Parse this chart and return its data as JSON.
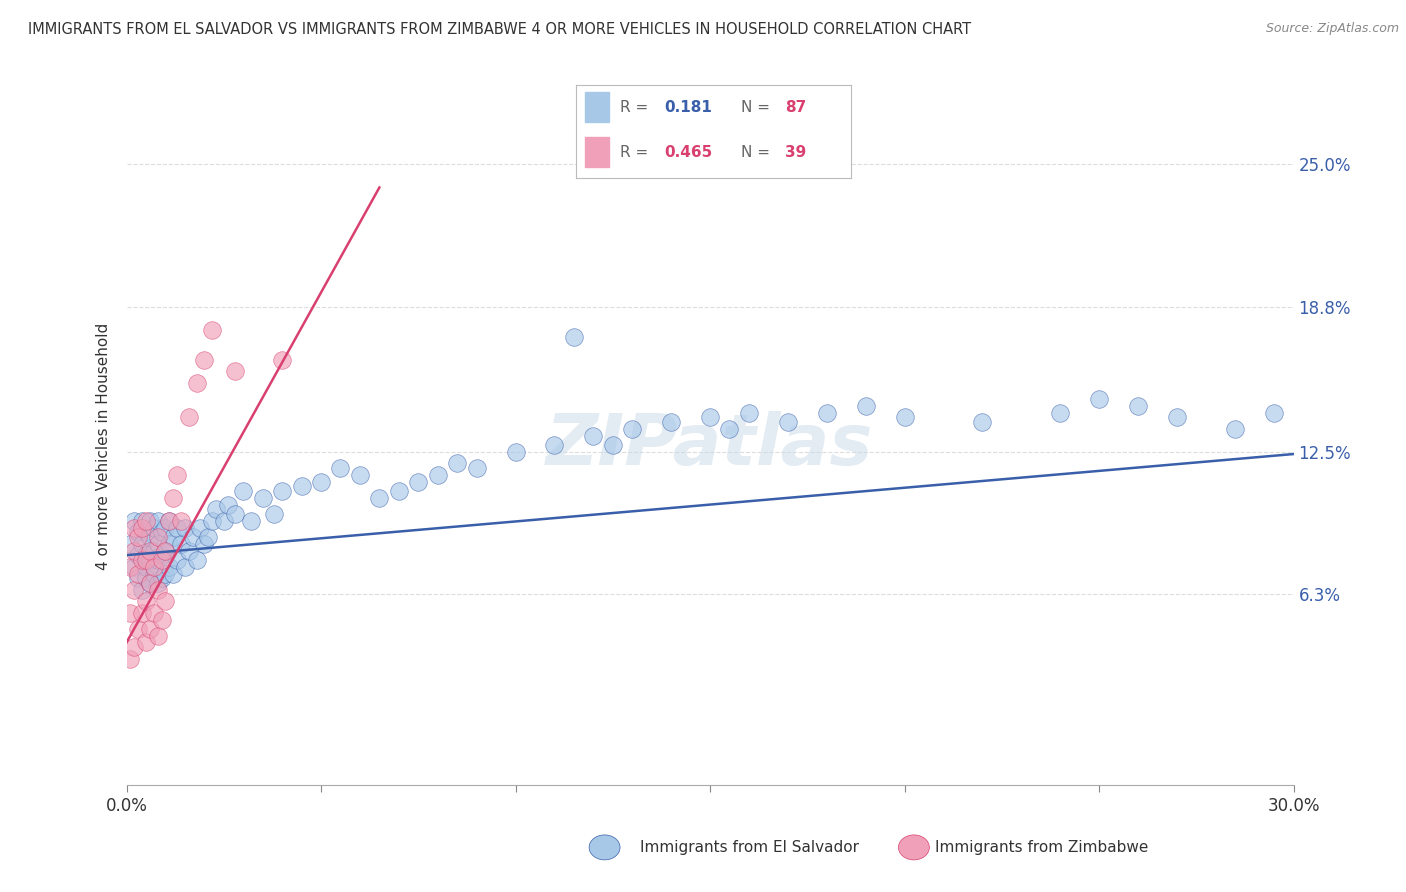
{
  "title": "IMMIGRANTS FROM EL SALVADOR VS IMMIGRANTS FROM ZIMBABWE 4 OR MORE VEHICLES IN HOUSEHOLD CORRELATION CHART",
  "source": "Source: ZipAtlas.com",
  "ylabel": "4 or more Vehicles in Household",
  "y_ticks": [
    0.063,
    0.125,
    0.188,
    0.25
  ],
  "y_tick_labels": [
    "6.3%",
    "12.5%",
    "18.8%",
    "25.0%"
  ],
  "x_range": [
    0.0,
    0.3
  ],
  "y_range": [
    -0.02,
    0.275
  ],
  "color_salvador": "#a8c8e8",
  "color_zimbabwe": "#f0a0b8",
  "color_salvador_line": "#3a5faa",
  "color_zimbabwe_line": "#d94070",
  "background_color": "#ffffff",
  "grid_color": "#dddddd",
  "watermark": "ZIPatlas",
  "legend_items": [
    {
      "color_box": "#a8c8e8",
      "text_R": "R = ",
      "val_R": "0.181",
      "text_N": "N = ",
      "val_N": "87"
    },
    {
      "color_box": "#f0a0b8",
      "text_R": "R = ",
      "val_R": "0.465",
      "text_N": "N = ",
      "val_N": "39"
    }
  ],
  "legend_val_color1": "#3a5faa",
  "legend_val_color2": "#d94070",
  "legend_N_color": "#d94070",
  "salvador_label": "Immigrants from El Salvador",
  "zimbabwe_label": "Immigrants from Zimbabwe",
  "scatter_salvador_x": [
    0.001,
    0.002,
    0.002,
    0.003,
    0.003,
    0.003,
    0.004,
    0.004,
    0.004,
    0.005,
    0.005,
    0.005,
    0.005,
    0.006,
    0.006,
    0.006,
    0.006,
    0.007,
    0.007,
    0.007,
    0.008,
    0.008,
    0.008,
    0.008,
    0.009,
    0.009,
    0.009,
    0.01,
    0.01,
    0.01,
    0.011,
    0.011,
    0.011,
    0.012,
    0.012,
    0.013,
    0.013,
    0.014,
    0.015,
    0.015,
    0.016,
    0.017,
    0.018,
    0.019,
    0.02,
    0.021,
    0.022,
    0.023,
    0.025,
    0.026,
    0.028,
    0.03,
    0.032,
    0.035,
    0.038,
    0.04,
    0.045,
    0.05,
    0.055,
    0.06,
    0.065,
    0.07,
    0.075,
    0.08,
    0.085,
    0.09,
    0.1,
    0.11,
    0.115,
    0.12,
    0.125,
    0.13,
    0.14,
    0.15,
    0.155,
    0.16,
    0.17,
    0.18,
    0.19,
    0.2,
    0.22,
    0.24,
    0.25,
    0.26,
    0.27,
    0.285,
    0.295
  ],
  "scatter_salvador_y": [
    0.085,
    0.075,
    0.095,
    0.07,
    0.08,
    0.09,
    0.065,
    0.085,
    0.095,
    0.07,
    0.075,
    0.08,
    0.09,
    0.068,
    0.078,
    0.088,
    0.095,
    0.072,
    0.082,
    0.092,
    0.068,
    0.078,
    0.085,
    0.095,
    0.07,
    0.08,
    0.09,
    0.072,
    0.082,
    0.092,
    0.075,
    0.085,
    0.095,
    0.072,
    0.088,
    0.078,
    0.092,
    0.085,
    0.075,
    0.092,
    0.082,
    0.088,
    0.078,
    0.092,
    0.085,
    0.088,
    0.095,
    0.1,
    0.095,
    0.102,
    0.098,
    0.108,
    0.095,
    0.105,
    0.098,
    0.108,
    0.11,
    0.112,
    0.118,
    0.115,
    0.105,
    0.108,
    0.112,
    0.115,
    0.12,
    0.118,
    0.125,
    0.128,
    0.175,
    0.132,
    0.128,
    0.135,
    0.138,
    0.14,
    0.135,
    0.142,
    0.138,
    0.142,
    0.145,
    0.14,
    0.138,
    0.142,
    0.148,
    0.145,
    0.14,
    0.135,
    0.142
  ],
  "scatter_zimbabwe_x": [
    0.001,
    0.001,
    0.001,
    0.002,
    0.002,
    0.002,
    0.002,
    0.003,
    0.003,
    0.003,
    0.004,
    0.004,
    0.004,
    0.005,
    0.005,
    0.005,
    0.005,
    0.006,
    0.006,
    0.006,
    0.007,
    0.007,
    0.008,
    0.008,
    0.008,
    0.009,
    0.009,
    0.01,
    0.01,
    0.011,
    0.012,
    0.013,
    0.014,
    0.016,
    0.018,
    0.02,
    0.022,
    0.028,
    0.04
  ],
  "scatter_zimbabwe_y": [
    0.035,
    0.055,
    0.075,
    0.04,
    0.065,
    0.082,
    0.092,
    0.048,
    0.072,
    0.088,
    0.055,
    0.078,
    0.092,
    0.042,
    0.06,
    0.078,
    0.095,
    0.048,
    0.068,
    0.082,
    0.055,
    0.075,
    0.045,
    0.065,
    0.088,
    0.052,
    0.078,
    0.06,
    0.082,
    0.095,
    0.105,
    0.115,
    0.095,
    0.14,
    0.155,
    0.165,
    0.178,
    0.16,
    0.165
  ]
}
